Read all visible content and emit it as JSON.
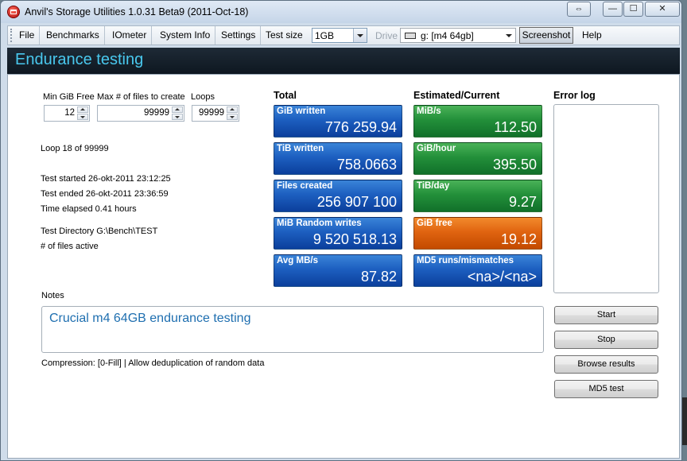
{
  "window": {
    "title": "Anvil's Storage Utilities 1.0.31 Beta9 (2011-Oct-18)",
    "caption_buttons": {
      "resize": "⇔",
      "minimize": "—",
      "maximize": "☐",
      "close": "✕"
    }
  },
  "menu": {
    "items": [
      "File",
      "Benchmarks",
      "IOmeter",
      "System Info",
      "Settings"
    ],
    "test_size_label": "Test size",
    "test_size_value": "1GB",
    "drive_label": "Drive",
    "drive_value": "g: [m4 64gb]",
    "screenshot_label": "Screenshot",
    "help_label": "Help"
  },
  "header": {
    "title": "Endurance testing"
  },
  "settings": {
    "min_free_label": "Min GiB Free",
    "min_free_value": "12",
    "max_files_label": "Max # of files to create",
    "max_files_value": "99999",
    "loops_label": "Loops",
    "loops_value": "99999"
  },
  "status": {
    "loop": "Loop 18 of 99999",
    "started": "Test started 26-okt-2011 23:12:25",
    "ended": "Test ended 26-okt-2011 23:36:59",
    "elapsed": "Time elapsed 0.41 hours",
    "directory": "Test Directory G:\\Bench\\TEST",
    "files_active": "# of files active"
  },
  "totals": {
    "heading": "Total",
    "tiles": [
      {
        "label": "GiB written",
        "value": "776 259.94"
      },
      {
        "label": "TiB written",
        "value": "758.0663"
      },
      {
        "label": "Files created",
        "value": "256 907 100"
      },
      {
        "label": "MiB Random writes",
        "value": "9 520 518.13"
      },
      {
        "label": "Avg MB/s",
        "value": "87.82"
      }
    ]
  },
  "current": {
    "heading": "Estimated/Current",
    "tiles": [
      {
        "label": "MiB/s",
        "value": "112.50"
      },
      {
        "label": "GiB/hour",
        "value": "395.50"
      },
      {
        "label": "TiB/day",
        "value": "9.27"
      },
      {
        "label": "GiB free",
        "value": "19.12"
      },
      {
        "label": "MD5 runs/mismatches",
        "value": "<na>/<na>"
      }
    ]
  },
  "error_log": {
    "heading": "Error log"
  },
  "notes": {
    "label": "Notes",
    "text": "Crucial m4 64GB endurance testing",
    "compression": "Compression: [0-Fill] | Allow deduplication of random data"
  },
  "buttons": {
    "start": "Start",
    "stop": "Stop",
    "browse": "Browse results",
    "md5": "MD5 test"
  },
  "colors": {
    "header_accent": "#49c8ee",
    "tile_blue": "#1d5fc0",
    "tile_green": "#23903a",
    "tile_orange": "#e06410"
  }
}
